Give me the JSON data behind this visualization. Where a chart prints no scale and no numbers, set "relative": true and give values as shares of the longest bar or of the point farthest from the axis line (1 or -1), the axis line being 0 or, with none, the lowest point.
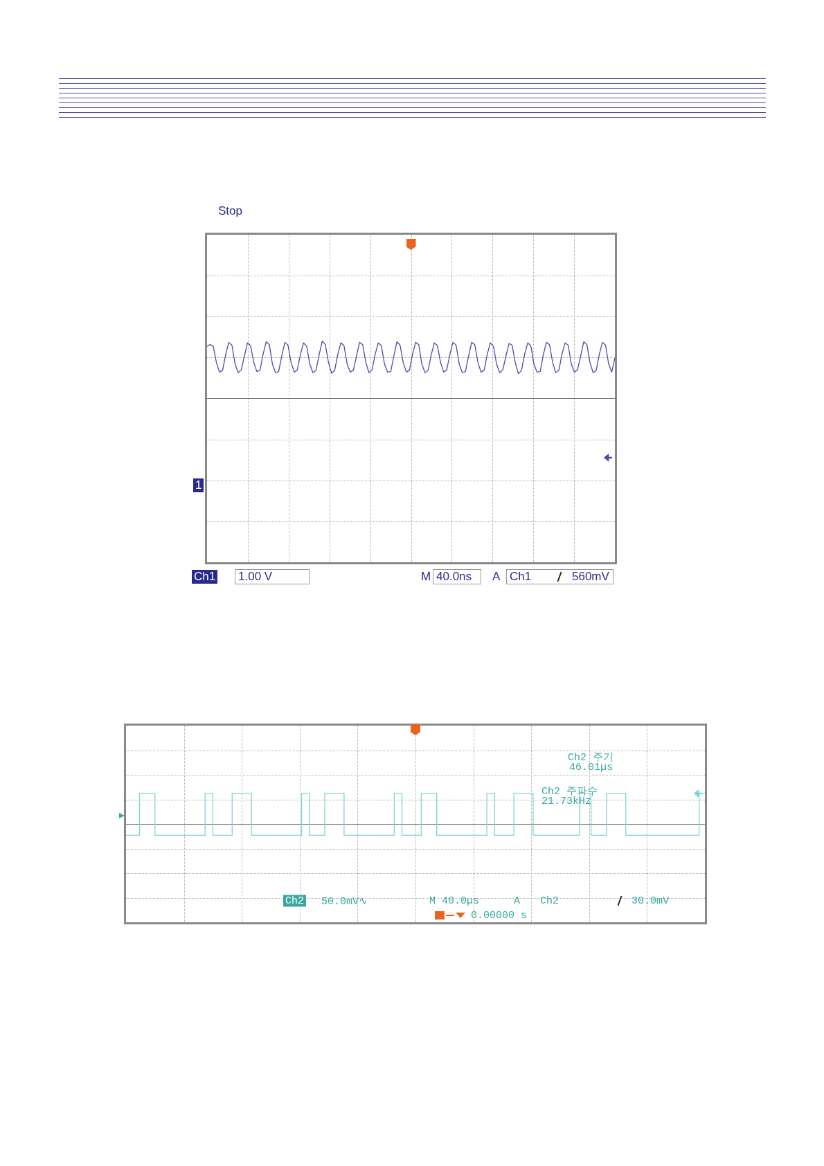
{
  "chart_data": [
    {
      "type": "line",
      "relative": true,
      "annotations": [
        "Stop",
        "Ch1",
        "1.00 V",
        "M",
        "40.0ns",
        "A",
        "Ch1",
        "560mV",
        "1"
      ],
      "categories": [
        null,
        null,
        null,
        null,
        null,
        null,
        null,
        null,
        null,
        null,
        null,
        null,
        null,
        null,
        null,
        null,
        null,
        null,
        null,
        null,
        null,
        null,
        null,
        null,
        null,
        null,
        null,
        null,
        null,
        null,
        null,
        null,
        null,
        null,
        null,
        null,
        null,
        null,
        null,
        null,
        null,
        null,
        null,
        null,
        null,
        null,
        null,
        null,
        null,
        null,
        null,
        null,
        null,
        null,
        null,
        null,
        null,
        null,
        null,
        null,
        null,
        null,
        null,
        null,
        null,
        null,
        null,
        null,
        null,
        null,
        null,
        null,
        null,
        null,
        null,
        null,
        null,
        null,
        null,
        null,
        null,
        null,
        null,
        null,
        null,
        null,
        null,
        null,
        null,
        null,
        null,
        null,
        null,
        null,
        null,
        null,
        null,
        null,
        null,
        null,
        null,
        null,
        null,
        null,
        null,
        null,
        null,
        null,
        null,
        null,
        null,
        null,
        null,
        null,
        null,
        null,
        null,
        null,
        null,
        null,
        null,
        null,
        null,
        null,
        null,
        null,
        null,
        null,
        null,
        null,
        null,
        null
      ],
      "series": [
        {
          "color": "#4b4ba8",
          "values": [
            0.91,
            0.94,
            0.91,
            0.63,
            0.46,
            0.49,
            0.77,
            0.98,
            0.93,
            0.6,
            0.45,
            0.5,
            0.74,
            0.97,
            0.92,
            0.63,
            0.47,
            0.49,
            0.77,
            0.99,
            0.94,
            0.6,
            0.45,
            0.47,
            0.74,
            0.98,
            0.93,
            0.63,
            0.46,
            0.5,
            0.77,
            0.97,
            0.91,
            0.6,
            0.45,
            0.49,
            0.76,
            1,
            0.94,
            0.63,
            0.44,
            0.49,
            0.77,
            0.97,
            0.92,
            0.6,
            0.46,
            0.49,
            0.74,
            0.98,
            0.94,
            0.63,
            0.45,
            0.5,
            0.77,
            0.97,
            0.92,
            0.6,
            0.46,
            0.47,
            0.74,
            0.99,
            0.93,
            0.63,
            0.46,
            0.49,
            0.77,
            0.98,
            0.94,
            0.6,
            0.45,
            0.49,
            0.76,
            0.97,
            0.92,
            0.63,
            0.46,
            0.5,
            0.77,
            0.98,
            0.93,
            0.6,
            0.45,
            0.47,
            0.74,
            0.98,
            0.94,
            0.63,
            0.46,
            0.49,
            0.77,
            0.97,
            0.91,
            0.6,
            0.45,
            0.5,
            0.74,
            0.96,
            0.93,
            0.63,
            0.43,
            0.49,
            0.77,
            0.97,
            0.92,
            0.6,
            0.46,
            0.47,
            0.76,
            0.98,
            0.94,
            0.63,
            0.45,
            0.49,
            0.77,
            0.97,
            0.93,
            0.6,
            0.46,
            0.5,
            0.74,
            0.99,
            0.94,
            0.63,
            0.45,
            0.49,
            0.77,
            0.98,
            0.93,
            0.6,
            0.46,
            0.71
          ]
        }
      ]
    },
    {
      "type": "step",
      "relative": true,
      "annotations": [
        "Ch2 주기",
        "46.01µs",
        "Ch2 주파수",
        "21.73kHz",
        "Ch2",
        "50.0mV∿",
        "M 40.0µs",
        "A",
        "Ch2",
        "30.0mV",
        "0.00000 s"
      ],
      "categories": [
        null,
        null,
        null,
        null,
        null,
        null,
        null,
        null,
        null,
        null,
        null,
        null,
        null,
        null,
        null,
        null,
        null,
        null,
        null,
        null,
        null,
        null,
        null,
        null,
        null,
        null,
        null,
        null,
        null,
        null,
        null,
        null,
        null,
        null,
        null,
        null,
        null,
        null,
        null,
        null,
        null,
        null,
        null,
        null,
        null,
        null,
        null,
        null,
        null,
        null,
        null,
        null,
        null,
        null,
        null,
        null,
        null,
        null,
        null,
        null,
        null,
        null,
        null,
        null,
        null,
        null,
        null,
        null,
        null,
        null,
        null,
        null,
        null,
        null,
        null,
        null,
        null,
        null,
        null,
        null,
        null,
        null,
        null,
        null,
        null,
        null,
        null,
        null,
        null,
        null,
        null,
        null,
        null,
        null,
        null,
        null,
        null,
        null,
        null,
        null,
        null,
        null,
        null,
        null,
        null,
        null,
        null,
        null,
        null,
        null,
        null,
        null,
        null,
        null,
        null,
        null,
        null,
        null,
        null,
        null,
        null,
        null,
        null,
        null,
        null,
        null,
        null,
        null,
        null,
        null,
        null,
        null,
        null,
        null,
        null,
        null,
        null,
        null,
        null,
        null,
        null,
        null,
        null,
        null,
        null,
        null,
        null,
        null,
        null,
        null,
        null
      ],
      "series": [
        {
          "color": "#7fd3d6",
          "values": [
            -0.37,
            -0.37,
            -0.37,
            -0.37,
            1,
            1,
            1,
            1,
            -0.37,
            -0.37,
            -0.37,
            -0.37,
            -0.37,
            -0.37,
            -0.37,
            -0.37,
            -0.37,
            -0.37,
            -0.37,
            -0.37,
            -0.37,
            1,
            1,
            -0.37,
            -0.37,
            -0.37,
            -0.37,
            -0.37,
            1,
            1,
            1,
            1,
            1,
            -0.37,
            -0.37,
            -0.37,
            -0.37,
            -0.37,
            -0.37,
            -0.37,
            -0.37,
            -0.37,
            -0.37,
            -0.37,
            -0.37,
            -0.37,
            1,
            1,
            -0.37,
            -0.37,
            -0.37,
            -0.37,
            1,
            1,
            1,
            1,
            1,
            -0.37,
            -0.37,
            -0.37,
            -0.37,
            -0.37,
            -0.37,
            -0.37,
            -0.37,
            -0.37,
            -0.37,
            -0.37,
            -0.37,
            -0.37,
            1,
            1,
            -0.37,
            -0.37,
            -0.37,
            -0.37,
            -0.37,
            1,
            1,
            1,
            1,
            -0.37,
            -0.37,
            -0.37,
            -0.37,
            -0.37,
            -0.37,
            -0.37,
            -0.37,
            -0.37,
            -0.37,
            -0.37,
            -0.37,
            -0.37,
            1,
            1,
            -0.37,
            -0.37,
            -0.37,
            -0.37,
            -0.37,
            1,
            1,
            1,
            1,
            1,
            -0.37,
            -0.37,
            -0.37,
            -0.37,
            -0.37,
            -0.37,
            -0.37,
            -0.37,
            -0.37,
            -0.37,
            -0.37,
            -0.37,
            1,
            1,
            1,
            -0.37,
            -0.37,
            -0.37,
            -0.37,
            1,
            1,
            1,
            1,
            1,
            -0.37,
            -0.37,
            -0.37,
            -0.37,
            -0.37,
            -0.37,
            -0.37,
            -0.37,
            -0.37,
            -0.37,
            -0.37,
            -0.37,
            -0.37,
            -0.37,
            -0.37,
            -0.37,
            -0.37,
            -0.37,
            -0.37,
            1,
            1
          ]
        }
      ]
    }
  ]
}
